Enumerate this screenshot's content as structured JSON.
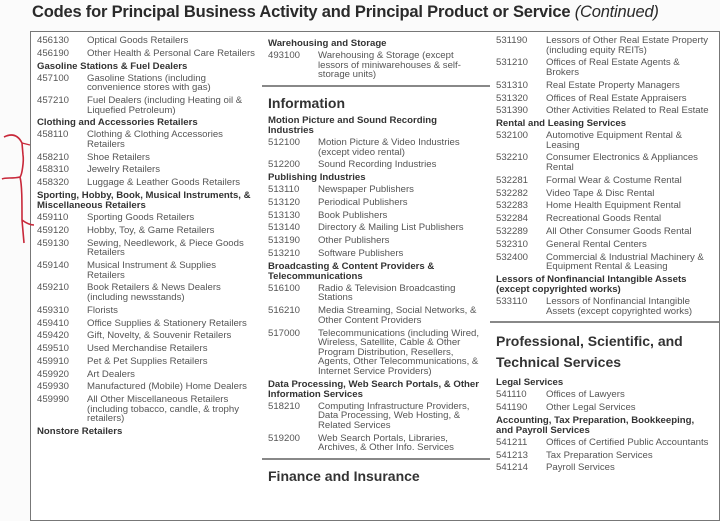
{
  "title": {
    "main": "Codes for Principal Business Activity and Principal Product or Service",
    "suffix": "(Continued)"
  },
  "colors": {
    "pen_annotation": "#c8283a",
    "border": "#777777"
  },
  "columns": [
    [
      {
        "entries": [
          {
            "type": "item",
            "code": "456130",
            "text": "Optical Goods Retailers"
          },
          {
            "type": "item",
            "code": "456190",
            "text": "Other Health & Personal Care Retailers"
          },
          {
            "type": "head",
            "text": "Gasoline Stations & Fuel Dealers"
          },
          {
            "type": "item",
            "code": "457100",
            "text": "Gasoline Stations (including convenience stores with gas)"
          },
          {
            "type": "item",
            "code": "457210",
            "text": "Fuel Dealers (including Heating oil & Liquefied Petroleum)"
          },
          {
            "type": "head",
            "text": "Clothing and Accessories Retailers"
          },
          {
            "type": "item",
            "code": "458110",
            "text": "Clothing & Clothing Accessories Retailers"
          },
          {
            "type": "item",
            "code": "458210",
            "text": "Shoe Retailers"
          },
          {
            "type": "item",
            "code": "458310",
            "text": "Jewelry Retailers"
          },
          {
            "type": "item",
            "code": "458320",
            "text": "Luggage & Leather Goods Retailers"
          },
          {
            "type": "head",
            "text": "Sporting, Hobby, Book, Musical Instruments, & Miscellaneous Retailers"
          },
          {
            "type": "item",
            "code": "459110",
            "text": "Sporting Goods Retailers"
          },
          {
            "type": "item",
            "code": "459120",
            "text": "Hobby, Toy, & Game Retailers"
          },
          {
            "type": "item",
            "code": "459130",
            "text": "Sewing, Needlework, & Piece Goods Retailers"
          },
          {
            "type": "item",
            "code": "459140",
            "text": "Musical Instrument & Supplies Retailers"
          },
          {
            "type": "item",
            "code": "459210",
            "text": "Book Retailers & News Dealers (including newsstands)"
          },
          {
            "type": "item",
            "code": "459310",
            "text": "Florists"
          },
          {
            "type": "item",
            "code": "459410",
            "text": "Office Supplies & Stationery Retailers"
          },
          {
            "type": "item",
            "code": "459420",
            "text": "Gift, Novelty, & Souvenir Retailers"
          },
          {
            "type": "item",
            "code": "459510",
            "text": "Used Merchandise Retailers"
          },
          {
            "type": "item",
            "code": "459910",
            "text": "Pet & Pet Supplies Retailers"
          },
          {
            "type": "item",
            "code": "459920",
            "text": "Art Dealers"
          },
          {
            "type": "item",
            "code": "459930",
            "text": "Manufactured (Mobile) Home Dealers"
          },
          {
            "type": "item",
            "code": "459990",
            "text": "All Other Miscellaneous Retailers (including tobacco, candle, & trophy retailers)"
          },
          {
            "type": "head",
            "text": "Nonstore Retailers"
          }
        ]
      }
    ],
    [
      {
        "entries": [
          {
            "type": "head",
            "text": "Warehousing and Storage"
          },
          {
            "type": "item",
            "code": "493100",
            "text": "Warehousing & Storage (except lessors of miniwarehouses & self-storage units)"
          }
        ]
      },
      {
        "entries": [
          {
            "type": "sec",
            "text": "Information"
          },
          {
            "type": "head",
            "text": "Motion Picture and Sound Recording Industries"
          },
          {
            "type": "item",
            "code": "512100",
            "text": "Motion Picture & Video Industries (except video rental)"
          },
          {
            "type": "item",
            "code": "512200",
            "text": "Sound Recording Industries"
          },
          {
            "type": "head",
            "text": "Publishing Industries"
          },
          {
            "type": "item",
            "code": "513110",
            "text": "Newspaper Publishers"
          },
          {
            "type": "item",
            "code": "513120",
            "text": "Periodical Publishers"
          },
          {
            "type": "item",
            "code": "513130",
            "text": "Book Publishers"
          },
          {
            "type": "item",
            "code": "513140",
            "text": "Directory & Mailing List Publishers"
          },
          {
            "type": "item",
            "code": "513190",
            "text": "Other Publishers"
          },
          {
            "type": "item",
            "code": "513210",
            "text": "Software Publishers"
          },
          {
            "type": "head",
            "text": "Broadcasting & Content Providers & Telecommunications"
          },
          {
            "type": "item",
            "code": "516100",
            "text": "Radio & Television Broadcasting Stations"
          },
          {
            "type": "item",
            "code": "516210",
            "text": "Media Streaming, Social Networks, & Other Content Providers"
          },
          {
            "type": "item",
            "code": "517000",
            "text": "Telecommunications (including Wired, Wireless, Satellite, Cable & Other Program Distribution, Resellers, Agents, Other Telecommunications, & Internet Service Providers)"
          },
          {
            "type": "head",
            "text": "Data Processing, Web Search Portals, & Other Information Services"
          },
          {
            "type": "item",
            "code": "518210",
            "text": "Computing Infrastructure Providers, Data Processing, Web Hosting, & Related Services"
          },
          {
            "type": "item",
            "code": "519200",
            "text": "Web Search Portals, Libraries, Archives, & Other Info. Services"
          }
        ]
      },
      {
        "entries": [
          {
            "type": "sec",
            "text": "Finance and Insurance"
          }
        ]
      }
    ],
    [
      {
        "entries": [
          {
            "type": "item",
            "code": "531190",
            "text": "Lessors of Other Real Estate Property (including equity REITs)"
          },
          {
            "type": "item",
            "code": "531210",
            "text": "Offices of Real Estate Agents & Brokers"
          },
          {
            "type": "item",
            "code": "531310",
            "text": "Real Estate Property Managers"
          },
          {
            "type": "item",
            "code": "531320",
            "text": "Offices of Real Estate Appraisers"
          },
          {
            "type": "item",
            "code": "531390",
            "text": "Other Activities Related to Real Estate"
          },
          {
            "type": "head",
            "text": "Rental and Leasing Services"
          },
          {
            "type": "item",
            "code": "532100",
            "text": "Automotive Equipment Rental & Leasing"
          },
          {
            "type": "item",
            "code": "532210",
            "text": "Consumer Electronics & Appliances Rental"
          },
          {
            "type": "item",
            "code": "532281",
            "text": "Formal Wear & Costume Rental"
          },
          {
            "type": "item",
            "code": "532282",
            "text": "Video Tape & Disc Rental"
          },
          {
            "type": "item",
            "code": "532283",
            "text": "Home Health Equipment Rental"
          },
          {
            "type": "item",
            "code": "532284",
            "text": "Recreational Goods Rental"
          },
          {
            "type": "item",
            "code": "532289",
            "text": "All Other Consumer Goods Rental"
          },
          {
            "type": "item",
            "code": "532310",
            "text": "General Rental Centers"
          },
          {
            "type": "item",
            "code": "532400",
            "text": "Commercial & Industrial Machinery & Equipment Rental & Leasing"
          },
          {
            "type": "head",
            "text": "Lessors of Nonfinancial Intangible Assets (except copyrighted works)"
          },
          {
            "type": "item",
            "code": "533110",
            "text": "Lessors of Nonfinancial Intangible Assets (except copyrighted works)"
          }
        ]
      },
      {
        "entries": [
          {
            "type": "sec",
            "tall": true,
            "text": "Professional, Scientific, and Technical Services"
          },
          {
            "type": "head",
            "text": "Legal Services"
          },
          {
            "type": "item",
            "code": "541110",
            "text": "Offices of Lawyers"
          },
          {
            "type": "item",
            "code": "541190",
            "text": "Other Legal Services"
          },
          {
            "type": "head",
            "text": "Accounting, Tax Preparation, Bookkeeping, and Payroll Services"
          },
          {
            "type": "item",
            "code": "541211",
            "text": "Offices of Certified Public Accountants"
          },
          {
            "type": "item",
            "code": "541213",
            "text": "Tax Preparation Services"
          },
          {
            "type": "item",
            "code": "541214",
            "text": "Payroll Services"
          }
        ]
      }
    ]
  ]
}
